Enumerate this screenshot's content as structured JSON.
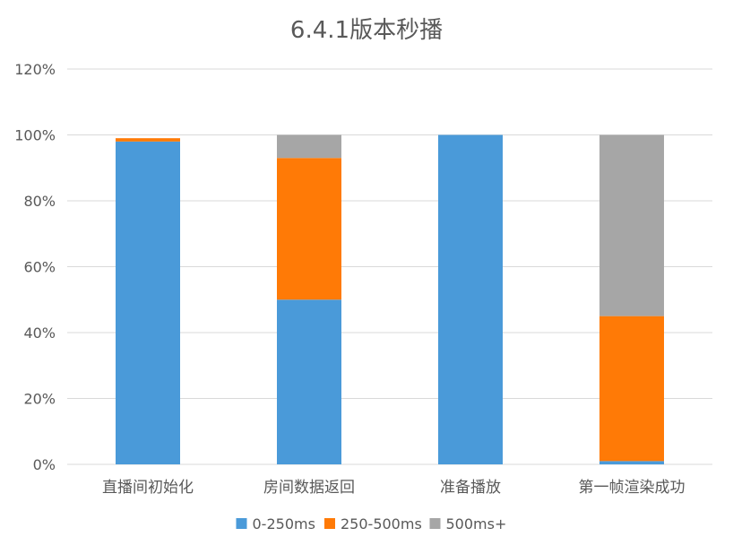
{
  "chart_data": {
    "type": "bar",
    "stacked": true,
    "title": "6.4.1版本秒播",
    "xlabel": "",
    "ylabel": "",
    "categories": [
      "直播间初始化",
      "房间数据返回",
      "准备播放",
      "第一帧渲染成功"
    ],
    "series": [
      {
        "name": "0-250ms",
        "color": "#4a9ad9",
        "values": [
          0.98,
          0.5,
          1.0,
          0.01
        ]
      },
      {
        "name": "250-500ms",
        "color": "#ff7a06",
        "values": [
          0.01,
          0.43,
          0.0,
          0.44
        ]
      },
      {
        "name": "500ms+",
        "color": "#a6a6a6",
        "values": [
          0.0,
          0.07,
          0.0,
          0.55
        ]
      }
    ],
    "ylim": [
      0,
      1.2
    ],
    "yticks": [
      0,
      0.2,
      0.4,
      0.6,
      0.8,
      1.0,
      1.2
    ],
    "ytick_labels": [
      "0%",
      "20%",
      "40%",
      "60%",
      "80%",
      "100%",
      "120%"
    ],
    "grid": true,
    "legend_position": "bottom"
  }
}
